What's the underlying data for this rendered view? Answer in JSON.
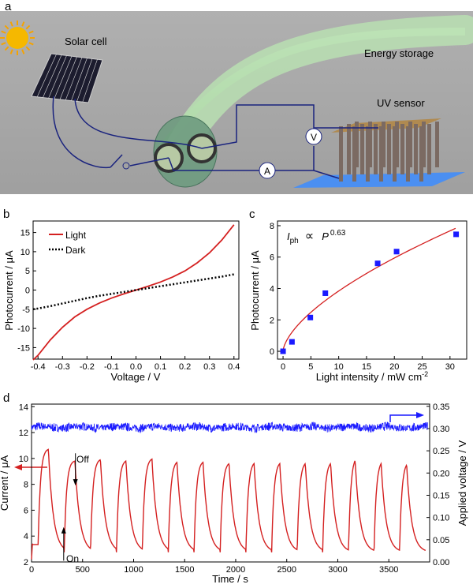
{
  "panel_a": {
    "letter": "a",
    "labels": {
      "solar_cell": "Solar cell",
      "energy_storage": "Energy storage",
      "uv_sensor": "UV sensor",
      "voltmeter": "V",
      "ammeter": "A"
    },
    "colors": {
      "background": "#a8a8a8",
      "fiber": "#a9d8a0",
      "wire": "#1a237e"
    }
  },
  "chart_data": [
    {
      "panel": "b",
      "type": "line",
      "xlabel": "Voltage / V",
      "ylabel": "Photocurrent / μA",
      "xlim": [
        -0.42,
        0.42
      ],
      "ylim": [
        -18,
        18
      ],
      "xticks": [
        "-0.4",
        "-0.3",
        "-0.2",
        "-0.1",
        "0.0",
        "0.1",
        "0.2",
        "0.3",
        "0.4"
      ],
      "yticks": [
        "-15",
        "-10",
        "-5",
        "0",
        "5",
        "10",
        "15"
      ],
      "legend": "top-left",
      "grid": false,
      "x": [
        -0.42,
        -0.4,
        -0.35,
        -0.3,
        -0.25,
        -0.2,
        -0.15,
        -0.1,
        -0.05,
        0,
        0.05,
        0.1,
        0.15,
        0.2,
        0.25,
        0.3,
        0.35,
        0.4
      ],
      "series": [
        {
          "name": "Light",
          "color": "#d42020",
          "style": "solid",
          "values": [
            -18.2,
            -17.0,
            -13.0,
            -9.7,
            -7.0,
            -5.0,
            -3.4,
            -2.1,
            -1.0,
            0,
            1.0,
            2.1,
            3.4,
            5.0,
            7.1,
            9.7,
            13.0,
            17.0
          ]
        },
        {
          "name": "Dark",
          "color": "#000000",
          "style": "dotted",
          "values": [
            -5.0,
            -4.8,
            -4.2,
            -3.5,
            -2.8,
            -2.1,
            -1.5,
            -1.0,
            -0.5,
            0,
            0.5,
            1.0,
            1.5,
            2.0,
            2.5,
            3.0,
            3.5,
            4.1
          ]
        }
      ]
    },
    {
      "panel": "c",
      "type": "scatter",
      "xlabel": "Light intensity / mW cm",
      "xlabel_sup": "-2",
      "ylabel": "Photocurrent / μA",
      "xlim": [
        -1,
        33
      ],
      "ylim": [
        -0.5,
        8.3
      ],
      "xticks": [
        "0",
        "5",
        "10",
        "15",
        "20",
        "25",
        "30"
      ],
      "yticks": [
        "0",
        "2",
        "4",
        "6",
        "8"
      ],
      "grid": false,
      "annotation": {
        "base": "I",
        "sub": "ph",
        "symbol": "∝",
        "var": "P",
        "exp": "0.63"
      },
      "points": {
        "color": "#1a1aff",
        "x": [
          0,
          1.6,
          4.9,
          7.6,
          17.0,
          20.4,
          31.1
        ],
        "y": [
          0,
          0.6,
          2.15,
          3.7,
          5.6,
          6.35,
          7.45
        ]
      },
      "fit": {
        "color": "#d42020",
        "coefficient": 0.9,
        "exponent": 0.63,
        "x_range": [
          0.05,
          31
        ]
      }
    },
    {
      "panel": "d",
      "type": "line",
      "xlabel": "Time / s",
      "ylabel_left": "Current / μA",
      "ylabel_right": "Applied voltage / V",
      "xlim": [
        0,
        3900
      ],
      "ylim_left": [
        2,
        14.2
      ],
      "ylim_right": [
        0,
        0.355
      ],
      "xticks": [
        "0",
        "500",
        "1000",
        "1500",
        "2000",
        "2500",
        "3000",
        "3500"
      ],
      "yticks_left": [
        "2",
        "4",
        "6",
        "8",
        "10",
        "12",
        "14"
      ],
      "yticks_right": [
        "0.00",
        "0.05",
        "0.10",
        "0.15",
        "0.20",
        "0.25",
        "0.30",
        "0.35"
      ],
      "grid": false,
      "annotations": {
        "off": "Off",
        "on": "On"
      },
      "current": {
        "color": "#d42020",
        "dark_level": 3.35,
        "minimum": 2.75,
        "on_times": [
          65,
          320,
          578,
          832,
          1085,
          1340,
          1592,
          1848,
          2100,
          2352,
          2602,
          2852,
          3105,
          3355,
          3605
        ],
        "off_times": [
          165,
          425,
          675,
          925,
          1180,
          1425,
          1680,
          1935,
          2180,
          2432,
          2682,
          2930,
          3170,
          3425,
          3675
        ],
        "peaks": [
          10.7,
          9.8,
          9.9,
          9.8,
          9.95,
          9.7,
          9.7,
          9.6,
          9.6,
          9.6,
          9.6,
          9.6,
          9.85,
          9.6,
          9.5
        ],
        "end_time": 3860
      },
      "voltage": {
        "color": "#1a1aff",
        "mean": 0.303,
        "noise": 0.01
      }
    }
  ]
}
